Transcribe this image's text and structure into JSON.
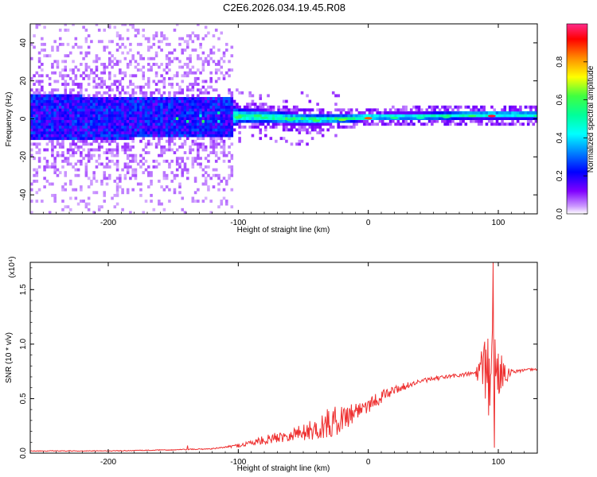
{
  "title": "C2E6.2026.034.19.45.R08",
  "colors": {
    "snr_line": "#ee3030",
    "background": "#ffffff",
    "colorbar": [
      "#ff2a8a",
      "#ff0000",
      "#ff8c00",
      "#ffff00",
      "#40ff40",
      "#00ff9a",
      "#00ffff",
      "#0080ff",
      "#0000ff",
      "#8000ff",
      "#ffffff"
    ]
  },
  "chart_data": [
    {
      "type": "heatmap",
      "name": "spectrogram",
      "title": "C2E6.2026.034.19.45.R08",
      "xlabel": "Height of straight line (km)",
      "ylabel": "Frequency (Hz)",
      "xlim": [
        -260,
        130
      ],
      "ylim": [
        -50,
        50
      ],
      "xticks": [
        -200,
        -100,
        0,
        100
      ],
      "yticks": [
        -40,
        -20,
        0,
        20,
        40
      ],
      "colorbar": {
        "label": "Normalized spectral amplitude",
        "range": [
          0.0,
          1.0
        ],
        "ticks": [
          0.0,
          0.2,
          0.4,
          0.6,
          0.8
        ]
      },
      "ridge": [
        {
          "x": -100,
          "f": 0.8,
          "amp": 0.6
        },
        {
          "x": -80,
          "f": 0.5,
          "amp": 0.55
        },
        {
          "x": -60,
          "f": -0.5,
          "amp": 0.55
        },
        {
          "x": -40,
          "f": -1.0,
          "amp": 0.6
        },
        {
          "x": -20,
          "f": -0.5,
          "amp": 0.65
        },
        {
          "x": 0,
          "f": 0.3,
          "amp": 0.85
        },
        {
          "x": 20,
          "f": 0.5,
          "amp": 0.55
        },
        {
          "x": 40,
          "f": 0.5,
          "amp": 0.5
        },
        {
          "x": 60,
          "f": 1.0,
          "amp": 0.55
        },
        {
          "x": 80,
          "f": 1.5,
          "amp": 0.6
        },
        {
          "x": 95,
          "f": 1.5,
          "amp": 0.95
        },
        {
          "x": 130,
          "f": 1.5,
          "amp": 0.55
        }
      ],
      "ridge_halfwidth_hz": [
        {
          "x": -260,
          "hw": 8
        },
        {
          "x": -105,
          "hw": 6
        },
        {
          "x": -100,
          "hw": 4
        },
        {
          "x": 0,
          "hw": 2
        },
        {
          "x": 130,
          "hw": 2.5
        }
      ],
      "noise_extent": {
        "x_min": -260,
        "x_max": -105,
        "f_min": -50,
        "f_max": 50
      }
    },
    {
      "type": "line",
      "name": "snr",
      "xlabel": "Height of straight line (km)",
      "ylabel": "SNR (10 * v/v)",
      "y_multiplier": "(x10⁴)",
      "xlim": [
        -260,
        130
      ],
      "ylim": [
        0,
        1.75
      ],
      "xticks": [
        -200,
        -100,
        0,
        100
      ],
      "yticks": [
        "0.0",
        "0.5",
        "1.0",
        "1.5"
      ],
      "series": [
        {
          "trend": {
            "x": [
              -260,
              -200,
              -150,
              -120,
              -100,
              -80,
              -60,
              -40,
              -20,
              0,
              20,
              40,
              60,
              80,
              85,
              95,
              100,
              110,
              130
            ],
            "y": [
              0.02,
              0.02,
              0.03,
              0.04,
              0.07,
              0.12,
              0.17,
              0.22,
              0.32,
              0.45,
              0.58,
              0.66,
              0.7,
              0.73,
              0.74,
              0.74,
              0.74,
              0.75,
              0.77
            ]
          },
          "noise_amplitude": {
            "x": [
              -260,
              -150,
              -110,
              -90,
              -60,
              -40,
              -30,
              -20,
              0,
              20,
              40,
              80,
              85,
              90,
              95,
              100,
              110,
              130
            ],
            "y": [
              0.003,
              0.004,
              0.006,
              0.03,
              0.06,
              0.1,
              0.15,
              0.12,
              0.08,
              0.04,
              0.02,
              0.02,
              0.1,
              0.35,
              0.6,
              0.25,
              0.02,
              0.01
            ]
          },
          "peaks": [
            {
              "x": -139,
              "y": 0.07
            },
            {
              "x": 92,
              "y": 1.05
            },
            {
              "x": 95,
              "y": 0.98
            },
            {
              "x": 96,
              "y": 1.75
            },
            {
              "x": 97,
              "y": 0.05
            }
          ]
        }
      ]
    }
  ]
}
